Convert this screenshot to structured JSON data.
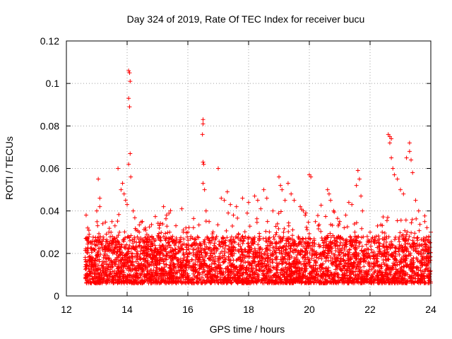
{
  "chart_data": {
    "type": "scatter",
    "title": "Day 324 of 2019, Rate Of TEC Index for receiver bucu",
    "xlabel": "GPS time / hours",
    "ylabel": "ROTI / TECUs",
    "xlim": [
      12,
      24
    ],
    "ylim": [
      0,
      0.12
    ],
    "grid": true,
    "marker": "plus",
    "color": "#ff0000",
    "x_ticks": [
      12,
      14,
      16,
      18,
      20,
      22,
      24
    ],
    "x_tick_labels": [
      "12",
      "14",
      "16",
      "18",
      "20",
      "22",
      "24"
    ],
    "y_ticks": [
      0,
      0.02,
      0.04,
      0.06,
      0.08,
      0.1,
      0.12
    ],
    "y_tick_labels": [
      "0",
      "0.02",
      "0.04",
      "0.06",
      "0.08",
      "0.1",
      "0.12"
    ],
    "series": [
      {
        "name": "ROTI",
        "description": "dense background: approx. 0.005-0.025 TECU/min from 12.6 h to 24 h",
        "points": [
          [
            12.65,
            0.038
          ],
          [
            12.7,
            0.032
          ],
          [
            12.75,
            0.029
          ],
          [
            12.8,
            0.025
          ],
          [
            12.9,
            0.022
          ],
          [
            13.05,
            0.055
          ],
          [
            13.1,
            0.046
          ],
          [
            13.1,
            0.042
          ],
          [
            13.2,
            0.034
          ],
          [
            13.0,
            0.04
          ],
          [
            13.4,
            0.03
          ],
          [
            13.5,
            0.035
          ],
          [
            13.6,
            0.033
          ],
          [
            13.7,
            0.06
          ],
          [
            13.8,
            0.05
          ],
          [
            13.85,
            0.053
          ],
          [
            13.9,
            0.048
          ],
          [
            13.95,
            0.045
          ],
          [
            14.0,
            0.043
          ],
          [
            14.05,
            0.106
          ],
          [
            14.08,
            0.105
          ],
          [
            14.1,
            0.101
          ],
          [
            14.05,
            0.093
          ],
          [
            14.08,
            0.089
          ],
          [
            14.1,
            0.067
          ],
          [
            14.05,
            0.062
          ],
          [
            14.12,
            0.056
          ],
          [
            14.2,
            0.04
          ],
          [
            14.4,
            0.03
          ],
          [
            14.5,
            0.035
          ],
          [
            14.6,
            0.032
          ],
          [
            14.8,
            0.025
          ],
          [
            15.0,
            0.022
          ],
          [
            15.2,
            0.042
          ],
          [
            15.3,
            0.038
          ],
          [
            15.4,
            0.03
          ],
          [
            15.5,
            0.028
          ],
          [
            15.6,
            0.025
          ],
          [
            15.8,
            0.041
          ],
          [
            16.0,
            0.03
          ],
          [
            16.1,
            0.028
          ],
          [
            16.2,
            0.025
          ],
          [
            16.5,
            0.083
          ],
          [
            16.5,
            0.081
          ],
          [
            16.48,
            0.076
          ],
          [
            16.5,
            0.063
          ],
          [
            16.52,
            0.062
          ],
          [
            16.5,
            0.053
          ],
          [
            16.55,
            0.05
          ],
          [
            16.6,
            0.04
          ],
          [
            16.7,
            0.035
          ],
          [
            17.0,
            0.06
          ],
          [
            17.1,
            0.046
          ],
          [
            17.2,
            0.045
          ],
          [
            17.3,
            0.049
          ],
          [
            17.4,
            0.043
          ],
          [
            17.5,
            0.038
          ],
          [
            17.6,
            0.042
          ],
          [
            17.8,
            0.046
          ],
          [
            18.0,
            0.044
          ],
          [
            18.2,
            0.047
          ],
          [
            18.3,
            0.045
          ],
          [
            18.4,
            0.041
          ],
          [
            18.5,
            0.05
          ],
          [
            18.6,
            0.046
          ],
          [
            18.8,
            0.04
          ],
          [
            19.0,
            0.056
          ],
          [
            19.05,
            0.052
          ],
          [
            19.1,
            0.05
          ],
          [
            19.2,
            0.045
          ],
          [
            19.3,
            0.053
          ],
          [
            19.4,
            0.048
          ],
          [
            19.5,
            0.045
          ],
          [
            19.7,
            0.042
          ],
          [
            19.8,
            0.04
          ],
          [
            20.0,
            0.057
          ],
          [
            20.05,
            0.056
          ],
          [
            20.2,
            0.035
          ],
          [
            20.3,
            0.033
          ],
          [
            20.6,
            0.05
          ],
          [
            20.65,
            0.048
          ],
          [
            20.7,
            0.045
          ],
          [
            20.8,
            0.04
          ],
          [
            21.0,
            0.035
          ],
          [
            21.2,
            0.038
          ],
          [
            21.3,
            0.044
          ],
          [
            21.4,
            0.043
          ],
          [
            21.5,
            0.03
          ],
          [
            21.55,
            0.052
          ],
          [
            21.6,
            0.059
          ],
          [
            21.65,
            0.055
          ],
          [
            21.7,
            0.047
          ],
          [
            21.75,
            0.04
          ],
          [
            22.0,
            0.03
          ],
          [
            22.2,
            0.028
          ],
          [
            22.4,
            0.03
          ],
          [
            22.6,
            0.076
          ],
          [
            22.65,
            0.075
          ],
          [
            22.7,
            0.074
          ],
          [
            22.65,
            0.072
          ],
          [
            22.7,
            0.065
          ],
          [
            22.75,
            0.06
          ],
          [
            22.8,
            0.057
          ],
          [
            22.9,
            0.055
          ],
          [
            23.0,
            0.05
          ],
          [
            23.1,
            0.048
          ],
          [
            23.2,
            0.065
          ],
          [
            23.3,
            0.072
          ],
          [
            23.3,
            0.068
          ],
          [
            23.35,
            0.064
          ],
          [
            23.4,
            0.058
          ],
          [
            23.5,
            0.045
          ],
          [
            23.6,
            0.04
          ],
          [
            23.8,
            0.035
          ],
          [
            24.0,
            0.03
          ]
        ]
      }
    ]
  }
}
